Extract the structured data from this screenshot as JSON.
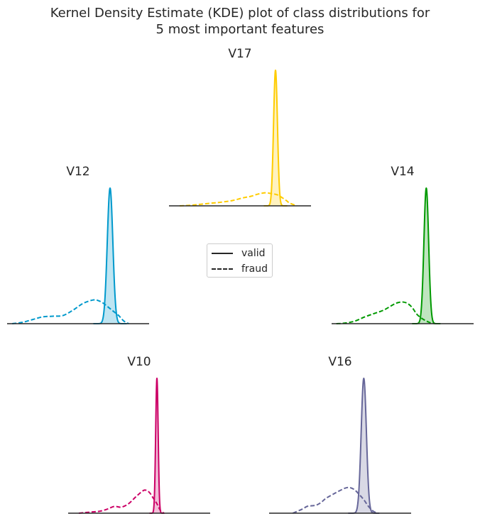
{
  "title": "Kernel Density Estimate (KDE) plot of class distributions for 5 most important features",
  "title_line1": "Kernel Density Estimate (KDE) plot of class distributions for",
  "title_line2": "5 most important features",
  "legend": {
    "position": "center",
    "entries": [
      {
        "label": "valid",
        "style": "solid"
      },
      {
        "label": "fraud",
        "style": "dashed"
      }
    ]
  },
  "chart_data": [
    {
      "type": "kde",
      "title": "V17",
      "color": "#ffcc00",
      "xlim": [
        -30,
        10
      ],
      "ylim": [
        0,
        1.0
      ],
      "series": [
        {
          "name": "valid",
          "style": "solid",
          "filled": true,
          "peak_x": 0.0,
          "peak_y": 1.0,
          "bandwidth": 0.55
        },
        {
          "name": "fraud",
          "style": "dashed",
          "filled": false,
          "x": [
            -27,
            -24,
            -21,
            -18,
            -15,
            -12,
            -9,
            -7,
            -5,
            -3,
            -1,
            0,
            1,
            3,
            4,
            6
          ],
          "y": [
            0.0,
            0.004,
            0.012,
            0.02,
            0.028,
            0.04,
            0.06,
            0.07,
            0.086,
            0.096,
            0.09,
            0.085,
            0.075,
            0.04,
            0.02,
            0.0
          ]
        }
      ]
    },
    {
      "type": "kde",
      "title": "V12",
      "color": "#0099cc",
      "xlim": [
        -20,
        8
      ],
      "ylim": [
        0,
        1.0
      ],
      "series": [
        {
          "name": "valid",
          "style": "solid",
          "filled": true,
          "peak_x": 0.3,
          "peak_y": 1.0,
          "bandwidth": 0.55
        },
        {
          "name": "fraud",
          "style": "dashed",
          "filled": false,
          "x": [
            -19,
            -17,
            -15,
            -13,
            -11,
            -9,
            -7,
            -5,
            -3,
            -2,
            -1,
            0,
            1,
            2,
            3,
            4
          ],
          "y": [
            0.0,
            0.01,
            0.03,
            0.05,
            0.055,
            0.06,
            0.1,
            0.15,
            0.175,
            0.17,
            0.15,
            0.12,
            0.09,
            0.06,
            0.02,
            0.0
          ]
        }
      ]
    },
    {
      "type": "kde",
      "title": "V14",
      "color": "#009900",
      "xlim": [
        -20,
        10
      ],
      "ylim": [
        0,
        1.0
      ],
      "series": [
        {
          "name": "valid",
          "style": "solid",
          "filled": true,
          "peak_x": 0.0,
          "peak_y": 1.0,
          "bandwidth": 0.5
        },
        {
          "name": "fraud",
          "style": "dashed",
          "filled": false,
          "x": [
            -19,
            -17,
            -15,
            -13,
            -11,
            -9,
            -7,
            -6,
            -5,
            -4,
            -3,
            -2,
            -1,
            0,
            1,
            2
          ],
          "y": [
            0.0,
            0.005,
            0.02,
            0.05,
            0.075,
            0.1,
            0.14,
            0.155,
            0.16,
            0.15,
            0.12,
            0.07,
            0.04,
            0.02,
            0.005,
            0.0
          ]
        }
      ]
    },
    {
      "type": "kde",
      "title": "V10",
      "color": "#cc0066",
      "xlim": [
        -25,
        15
      ],
      "ylim": [
        0,
        1.0
      ],
      "series": [
        {
          "name": "valid",
          "style": "solid",
          "filled": true,
          "peak_x": 0.0,
          "peak_y": 1.0,
          "bandwidth": 0.35
        },
        {
          "name": "fraud",
          "style": "dashed",
          "filled": false,
          "x": [
            -22,
            -20,
            -18,
            -16,
            -14,
            -12,
            -10,
            -8,
            -6,
            -4,
            -3,
            -2,
            -1,
            0,
            1,
            2
          ],
          "y": [
            0.0,
            0.005,
            0.01,
            0.015,
            0.03,
            0.05,
            0.045,
            0.07,
            0.12,
            0.165,
            0.17,
            0.15,
            0.11,
            0.07,
            0.02,
            0.0
          ]
        }
      ]
    },
    {
      "type": "kde",
      "title": "V16",
      "color": "#666699",
      "xlim": [
        -20,
        10
      ],
      "ylim": [
        0,
        1.0
      ],
      "series": [
        {
          "name": "valid",
          "style": "solid",
          "filled": true,
          "peak_x": 0.0,
          "peak_y": 1.0,
          "bandwidth": 0.55
        },
        {
          "name": "fraud",
          "style": "dashed",
          "filled": false,
          "x": [
            -15,
            -13,
            -12,
            -11,
            -10,
            -9,
            -8,
            -6,
            -4,
            -3,
            -2,
            -1,
            0,
            1,
            2,
            3
          ],
          "y": [
            0.0,
            0.03,
            0.05,
            0.055,
            0.06,
            0.08,
            0.11,
            0.15,
            0.185,
            0.19,
            0.175,
            0.14,
            0.1,
            0.05,
            0.015,
            0.0
          ]
        }
      ]
    }
  ]
}
